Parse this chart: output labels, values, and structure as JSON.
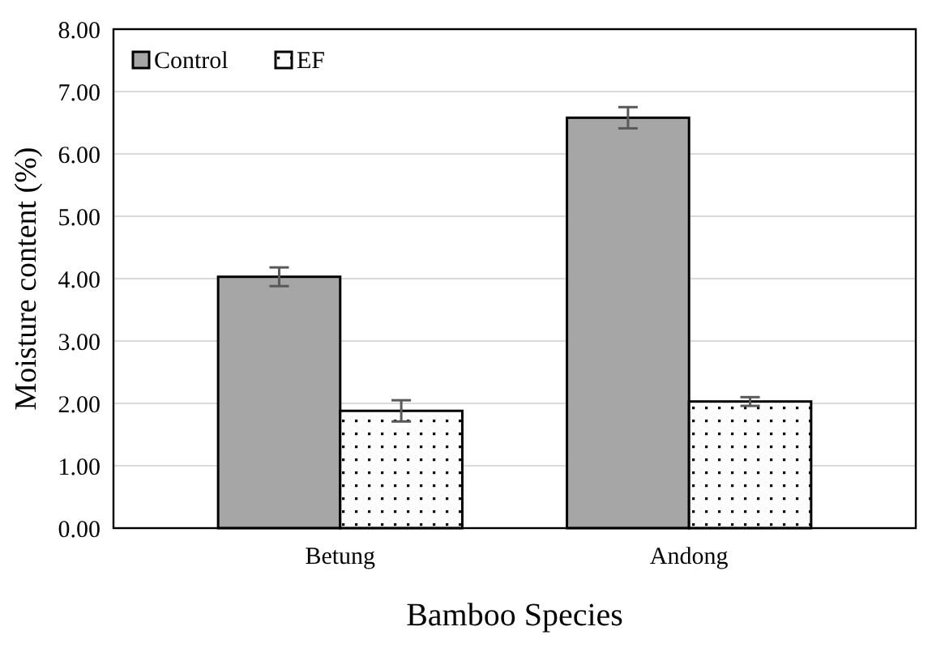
{
  "chart_data": {
    "type": "bar",
    "xlabel": "Bamboo Species",
    "ylabel": "Moisture content (%)",
    "categories": [
      "Betung",
      "Andong"
    ],
    "series": [
      {
        "name": "Control",
        "color": "#a6a6a6",
        "values": [
          4.03,
          6.58
        ],
        "errors": [
          0.15,
          0.17
        ]
      },
      {
        "name": "EF",
        "color": "#ffffff",
        "values": [
          1.88,
          2.03
        ],
        "errors": [
          0.17,
          0.07
        ]
      }
    ],
    "ylim": [
      0,
      8
    ],
    "yticks": [
      {
        "value": 0,
        "label": "0.00"
      },
      {
        "value": 1,
        "label": "1.00"
      },
      {
        "value": 2,
        "label": "2.00"
      },
      {
        "value": 3,
        "label": "3.00"
      },
      {
        "value": 4,
        "label": "4.00"
      },
      {
        "value": 5,
        "label": "5.00"
      },
      {
        "value": 6,
        "label": "6.00"
      },
      {
        "value": 7,
        "label": "7.00"
      },
      {
        "value": 8,
        "label": "8.00"
      }
    ],
    "grid": "y",
    "legend": "top left"
  }
}
